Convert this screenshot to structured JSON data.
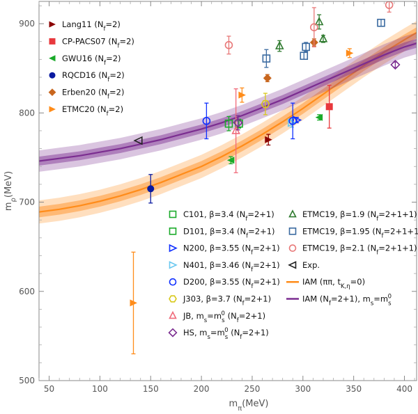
{
  "chart_data": {
    "type": "scatter",
    "title": "",
    "xlabel": "mπ(MeV)",
    "ylabel": "mρ(MeV)",
    "xlim": [
      40,
      412
    ],
    "ylim": [
      500,
      925
    ],
    "x_ticks": [
      50,
      100,
      150,
      200,
      250,
      300,
      350,
      400
    ],
    "y_ticks": [
      500,
      600,
      700,
      800,
      900
    ],
    "bands": [
      {
        "name": "IAM (ππ, t_K,η=0)",
        "color": "#ff8c1a",
        "x": [
          40,
          60,
          80,
          100,
          120,
          140,
          160,
          180,
          200,
          220,
          240,
          260,
          280,
          300,
          320,
          340,
          360,
          380,
          400,
          412
        ],
        "center": [
          689,
          692,
          696,
          701,
          707,
          714,
          722,
          731,
          740,
          751,
          763,
          776,
          790,
          805,
          821,
          837,
          853,
          868,
          882,
          890
        ],
        "inner_halfwidth": 6,
        "outer_halfwidth": 13
      },
      {
        "name": "IAM (Nf=2+1), ms=ms0",
        "color": "#7b2d90",
        "x": [
          40,
          60,
          80,
          100,
          120,
          140,
          160,
          180,
          200,
          220,
          240,
          260,
          280,
          300,
          320,
          340,
          360,
          380,
          400,
          412
        ],
        "center": [
          746,
          749,
          752,
          756,
          760,
          765,
          770,
          776,
          782,
          789,
          797,
          806,
          815,
          825,
          835,
          845,
          855,
          865,
          874,
          878
        ],
        "inner_halfwidth": 5,
        "outer_halfwidth": 12
      }
    ],
    "series": [
      {
        "name": "Lang11 (Nf=2)",
        "color": "#8b0000",
        "marker": "tri-right-filled",
        "points": [
          {
            "x": 266,
            "y": 770,
            "err": 6
          }
        ]
      },
      {
        "name": "CP-PACS07 (Nf=2)",
        "color": "#e8383d",
        "marker": "square-filled",
        "points": [
          {
            "x": 326,
            "y": 807,
            "err": 24
          }
        ]
      },
      {
        "name": "GWU16 (Nf=2)",
        "color": "#1aaa2a",
        "marker": "tri-left-filled",
        "points": [
          {
            "x": 229,
            "y": 747,
            "err": 4
          },
          {
            "x": 316,
            "y": 795,
            "err": 3
          }
        ]
      },
      {
        "name": "RQCD16 (Nf=2)",
        "color": "#0a1aa0",
        "marker": "circle-filled",
        "points": [
          {
            "x": 150,
            "y": 715,
            "err": 16
          }
        ]
      },
      {
        "name": "Erben20 (Nf=2)",
        "color": "#c8661e",
        "marker": "diamond-filled",
        "points": [
          {
            "x": 265,
            "y": 839,
            "err": 4
          },
          {
            "x": 311,
            "y": 879,
            "err": 4
          }
        ]
      },
      {
        "name": "ETMC20 (Nf=2)",
        "color": "#ff8c1a",
        "marker": "tri-right-filled",
        "points": [
          {
            "x": 133,
            "y": 587,
            "err": 57
          },
          {
            "x": 240,
            "y": 820,
            "err": 8
          },
          {
            "x": 346,
            "y": 867,
            "err": 5
          }
        ]
      },
      {
        "name": "C101, β=3.4 (Nf=2+1)",
        "color": "#1aaa2a",
        "marker": "square-open",
        "points": [
          {
            "x": 227,
            "y": 788,
            "err": 8
          }
        ]
      },
      {
        "name": "D101, β=3.4 (Nf=2+1)",
        "color": "#1aaa2a",
        "marker": "square-open",
        "points": [
          {
            "x": 237,
            "y": 788,
            "err": 5
          }
        ]
      },
      {
        "name": "N200, β=3.55 (Nf=2+1)",
        "color": "#1030ff",
        "marker": "tri-right-open",
        "points": [
          {
            "x": 294,
            "y": 792,
            "err": 3
          }
        ]
      },
      {
        "name": "N401, β=3.46 (Nf=2+1)",
        "color": "#6ac8f0",
        "marker": "tri-right-open",
        "points": [
          {
            "x": 289,
            "y": 789,
            "err": 5
          }
        ]
      },
      {
        "name": "D200, β=3.55 (Nf=2+1)",
        "color": "#1030ff",
        "marker": "circle-open",
        "points": [
          {
            "x": 205,
            "y": 791,
            "err": 20
          },
          {
            "x": 290,
            "y": 791,
            "err": 20
          }
        ]
      },
      {
        "name": "J303, β=3.7 (Nf=2+1)",
        "color": "#d8c81a",
        "marker": "hexagon-open",
        "points": [
          {
            "x": 263,
            "y": 810,
            "err": 12
          }
        ]
      },
      {
        "name": "JB, ms=ms0 (Nf=2+1)",
        "color": "#f06a7a",
        "marker": "tri-up-open",
        "points": [
          {
            "x": 234,
            "y": 780,
            "err": 47
          }
        ]
      },
      {
        "name": "HS, ms=ms0 (Nf=2+1)",
        "color": "#7b2d90",
        "marker": "diamond-open",
        "points": [
          {
            "x": 236,
            "y": 789,
            "err": 8
          },
          {
            "x": 391,
            "y": 854,
            "err": 3
          }
        ]
      },
      {
        "name": "ETMC19, β=1.9 (Nf=2+1+1)",
        "color": "#2f7a2f",
        "marker": "tri-up-open",
        "points": [
          {
            "x": 277,
            "y": 875,
            "err": 6
          },
          {
            "x": 316,
            "y": 902,
            "err": 8
          },
          {
            "x": 320,
            "y": 883,
            "err": 4
          }
        ]
      },
      {
        "name": "ETMC19, β=1.95 (Nf=2+1+1)",
        "color": "#3a6aa0",
        "marker": "square-open",
        "points": [
          {
            "x": 264,
            "y": 861,
            "err": 10
          },
          {
            "x": 301,
            "y": 864,
            "err": 4
          },
          {
            "x": 303,
            "y": 874,
            "err": 5
          },
          {
            "x": 377,
            "y": 901,
            "err": 4
          }
        ]
      },
      {
        "name": "ETMC19, β=2.1 (Nf=2+1+1)",
        "color": "#e87878",
        "marker": "circle-open",
        "points": [
          {
            "x": 227,
            "y": 876,
            "err": 10
          },
          {
            "x": 311,
            "y": 896,
            "err": 22
          },
          {
            "x": 385,
            "y": 921,
            "err": 8
          }
        ]
      },
      {
        "name": "Exp.",
        "color": "#222222",
        "marker": "tri-left-open",
        "points": [
          {
            "x": 138,
            "y": 769,
            "err": 0
          }
        ]
      }
    ],
    "legend_left": [
      {
        "label": "Lang11 (Nf=2)",
        "color": "#8b0000",
        "marker": "tri-right-filled"
      },
      {
        "label": "CP-PACS07 (Nf=2)",
        "color": "#e8383d",
        "marker": "square-filled"
      },
      {
        "label": "GWU16 (Nf=2)",
        "color": "#1aaa2a",
        "marker": "tri-left-filled"
      },
      {
        "label": "RQCD16 (Nf=2)",
        "color": "#0a1aa0",
        "marker": "circle-filled"
      },
      {
        "label": "Erben20 (Nf=2)",
        "color": "#c8661e",
        "marker": "diamond-filled"
      },
      {
        "label": "ETMC20 (Nf=2)",
        "color": "#ff8c1a",
        "marker": "tri-right-filled"
      }
    ],
    "legend_mid": [
      {
        "label": "C101, β=3.4 (Nf=2+1)",
        "color": "#1aaa2a",
        "marker": "square-open"
      },
      {
        "label": "D101, β=3.4 (Nf=2+1)",
        "color": "#1aaa2a",
        "marker": "square-open"
      },
      {
        "label": "N200, β=3.55 (Nf=2+1)",
        "color": "#1030ff",
        "marker": "tri-right-open"
      },
      {
        "label": "N401, β=3.46 (Nf=2+1)",
        "color": "#6ac8f0",
        "marker": "tri-right-open"
      },
      {
        "label": "D200, β=3.55 (Nf=2+1)",
        "color": "#1030ff",
        "marker": "circle-open"
      },
      {
        "label": "J303, β=3.7 (Nf=2+1)",
        "color": "#d8c81a",
        "marker": "hexagon-open"
      },
      {
        "label": "JB, ms=ms0 (Nf=2+1)",
        "color": "#f06a7a",
        "marker": "tri-up-open"
      },
      {
        "label": "HS, ms=ms0 (Nf=2+1)",
        "color": "#7b2d90",
        "marker": "diamond-open"
      }
    ],
    "legend_right": [
      {
        "label": "ETMC19, β=1.9 (Nf=2+1+1)",
        "color": "#2f7a2f",
        "marker": "tri-up-open"
      },
      {
        "label": "ETMC19, β=1.95 (Nf=2+1+1)",
        "color": "#3a6aa0",
        "marker": "square-open"
      },
      {
        "label": "ETMC19, β=2.1 (Nf=2+1+1)",
        "color": "#e87878",
        "marker": "circle-open"
      },
      {
        "label": "Exp.",
        "color": "#222222",
        "marker": "tri-left-open"
      },
      {
        "label": "IAM (ππ, tK,η=0)",
        "color": "#ff8c1a",
        "marker": "line"
      },
      {
        "label": "IAM (Nf=2+1), ms=ms0",
        "color": "#7b2d90",
        "marker": "line"
      }
    ]
  }
}
